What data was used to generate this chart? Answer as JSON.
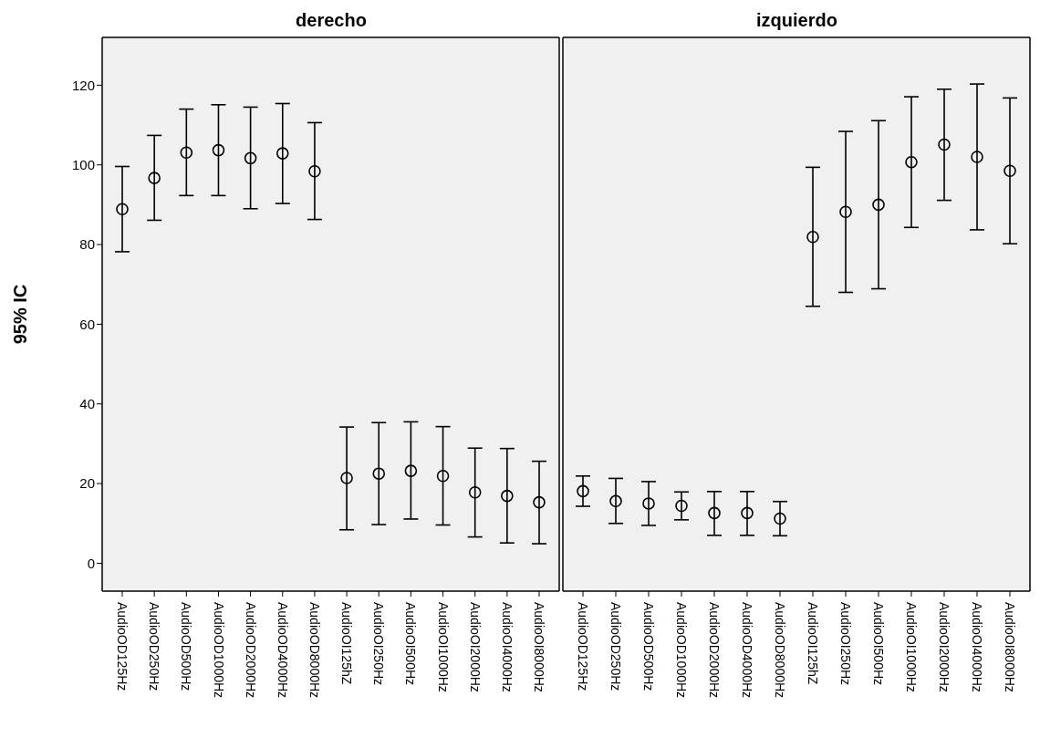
{
  "chart_data": [
    {
      "type": "scatter",
      "title": "derecho",
      "ylabel": "95% IC",
      "categories": [
        "AudioOD125Hz",
        "AudioOD250Hz",
        "AudioOD500Hz",
        "AudioOD1000Hz",
        "AudioOD2000Hz",
        "AudioOD4000Hz",
        "AudioOD8000Hz",
        "AudioOI125hZ",
        "AudioOI250Hz",
        "AudioOI500Hz",
        "AudioOI1000Hz",
        "AudioOI2000Hz",
        "AudioOI4000Hz",
        "AudioOI8000Hz"
      ],
      "series": [
        {
          "color": "#000000",
          "values": [
            88.9,
            96.7,
            103.1,
            103.7,
            101.7,
            102.9,
            98.4,
            21.4,
            22.5,
            23.2,
            21.9,
            17.8,
            16.9,
            15.3
          ],
          "errors": [
            [
              78.2,
              99.6
            ],
            [
              86.1,
              107.4
            ],
            [
              92.3,
              114.0
            ],
            [
              92.3,
              115.1
            ],
            [
              89.0,
              114.5
            ],
            [
              90.3,
              115.4
            ],
            [
              86.3,
              110.6
            ],
            [
              8.4,
              34.2
            ],
            [
              9.7,
              35.3
            ],
            [
              11.1,
              35.5
            ],
            [
              9.6,
              34.3
            ],
            [
              6.6,
              28.9
            ],
            [
              5.1,
              28.8
            ],
            [
              4.9,
              25.6
            ]
          ]
        }
      ],
      "ylim": [
        -7,
        132
      ],
      "yticks": [
        0,
        20,
        40,
        60,
        80,
        100,
        120
      ],
      "grid": false,
      "marker": "circle"
    },
    {
      "type": "scatter",
      "title": "izquierdo",
      "categories": [
        "AudioOD125Hz",
        "AudioOD250Hz",
        "AudioOD500Hz",
        "AudioOD1000Hz",
        "AudioOD2000Hz",
        "AudioOD4000Hz",
        "AudioOD8000Hz",
        "AudioOI125hZ",
        "AudioOI250Hz",
        "AudioOI500Hz",
        "AudioOI1000Hz",
        "AudioOI2000Hz",
        "AudioOI4000Hz",
        "AudioOI8000Hz"
      ],
      "series": [
        {
          "color": "#000000",
          "values": [
            18.1,
            15.6,
            15.0,
            14.4,
            12.6,
            12.6,
            11.2,
            81.9,
            88.2,
            90.0,
            100.7,
            105.1,
            102.0,
            98.5
          ],
          "errors": [
            [
              14.3,
              21.9
            ],
            [
              10.0,
              21.3
            ],
            [
              9.5,
              20.5
            ],
            [
              10.9,
              17.9
            ],
            [
              7.0,
              18.0
            ],
            [
              7.0,
              18.0
            ],
            [
              6.9,
              15.5
            ],
            [
              64.5,
              99.4
            ],
            [
              68.0,
              108.4
            ],
            [
              68.9,
              111.1
            ],
            [
              84.3,
              117.1
            ],
            [
              91.1,
              119.0
            ],
            [
              83.7,
              120.3
            ],
            [
              80.2,
              116.8
            ]
          ]
        }
      ],
      "ylim": [
        -7,
        132
      ],
      "yticks": [
        0,
        20,
        40,
        60,
        80,
        100,
        120
      ],
      "grid": false,
      "marker": "circle",
      "tick_labels": "x"
    }
  ]
}
